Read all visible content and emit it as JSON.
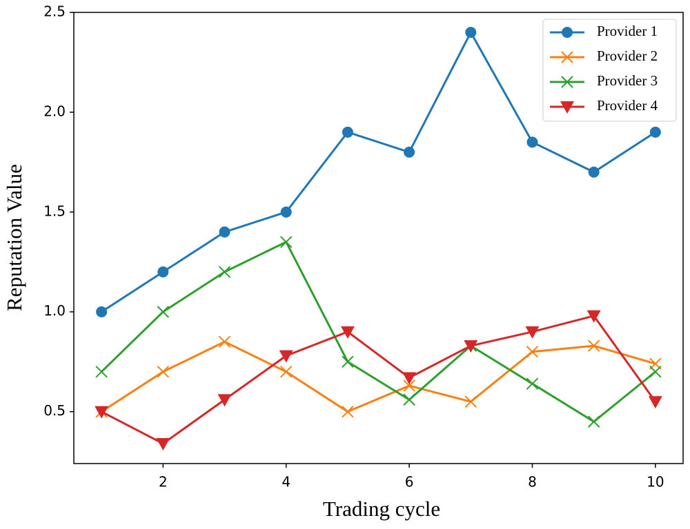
{
  "chart_data": {
    "type": "line",
    "xlabel": "Trading cycle",
    "ylabel": "Reputation Value",
    "x": [
      1,
      2,
      3,
      4,
      5,
      6,
      7,
      8,
      9,
      10
    ],
    "series": [
      {
        "name": "Provider 1",
        "color": "#1f77b4",
        "marker": "o",
        "values": [
          1.0,
          1.2,
          1.4,
          1.5,
          1.9,
          1.8,
          2.4,
          1.85,
          1.7,
          1.9
        ]
      },
      {
        "name": "Provider 2",
        "color": "#ff7f0e",
        "marker": "x",
        "values": [
          0.5,
          0.7,
          0.85,
          0.7,
          0.5,
          0.63,
          0.55,
          0.8,
          0.83,
          0.74
        ]
      },
      {
        "name": "Provider 3",
        "color": "#2ca02c",
        "marker": "x",
        "values": [
          0.7,
          1.0,
          1.2,
          1.35,
          0.75,
          0.56,
          0.83,
          0.64,
          0.45,
          0.7
        ]
      },
      {
        "name": "Provider 4",
        "color": "#d62728",
        "marker": "v",
        "values": [
          0.5,
          0.34,
          0.56,
          0.78,
          0.9,
          0.67,
          0.83,
          0.9,
          0.98,
          0.55
        ]
      }
    ],
    "xlim": [
      0.55,
      10.45
    ],
    "xticks": [
      2,
      4,
      6,
      8,
      10
    ],
    "ylim": [
      0.24,
      2.5
    ],
    "yticks": [
      0.5,
      {
        "value": 1.0,
        "label": "1.0"
      },
      1.5,
      {
        "value": 2.0,
        "label": "2.0"
      },
      2.5
    ],
    "grid": false,
    "legend": "upper right"
  }
}
